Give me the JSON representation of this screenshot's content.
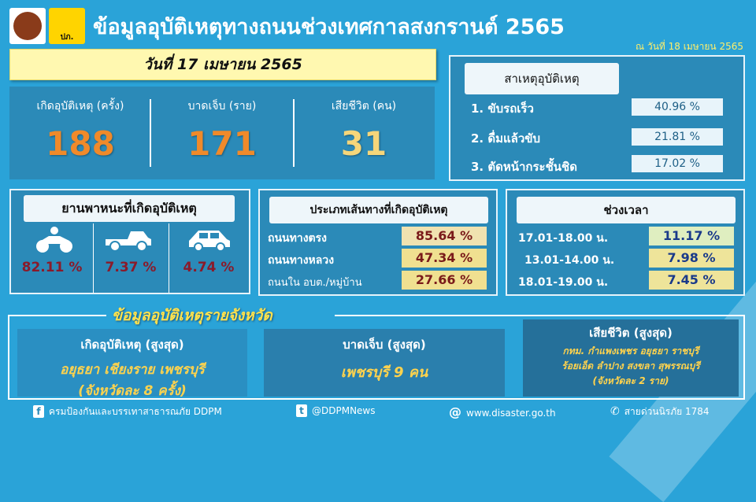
{
  "header": {
    "title": "ข้อมูลอุบัติเหตุทางถนนช่วงเทศกาลสงกรานต์ 2565",
    "as_of": "ณ วันที่ 18 เมษายน 2565",
    "logo_text": "ปภ."
  },
  "date_banner": "วันที่ 17 เมษายน 2565",
  "stats": [
    {
      "label": "เกิดอุบัติเหตุ (ครั้ง)",
      "value": "188"
    },
    {
      "label": "บาดเจ็บ (ราย)",
      "value": "171"
    },
    {
      "label": "เสียชีวิต (คน)",
      "value": "31"
    }
  ],
  "causes": {
    "title": "สาเหตุอุบัติเหตุ",
    "items": [
      {
        "label": "1. ขับรถเร็ว",
        "value": "40.96  %"
      },
      {
        "label": "2. ดื่มแล้วขับ",
        "value": "21.81  %"
      },
      {
        "label": "3. ตัดหน้ากระชั้นชิด",
        "value": "17.02  %"
      }
    ]
  },
  "vehicles": {
    "title": "ยานพาหนะที่เกิดอุบัติเหตุ",
    "items": [
      {
        "icon": "motorcycle-icon",
        "value": "82.11 %"
      },
      {
        "icon": "pickup-truck-icon",
        "value": "7.37 %"
      },
      {
        "icon": "car-icon",
        "value": "4.74 %"
      }
    ]
  },
  "roads": {
    "title": "ประเภทเส้นทางที่เกิดอุบัติเหตุ",
    "items": [
      {
        "label": "ถนนทางตรง",
        "value": "85.64  %"
      },
      {
        "label": "ถนนทางหลวง",
        "value": "47.34  %"
      },
      {
        "label": "ถนนใน อบต./หมู่บ้าน",
        "value": "27.66  %"
      }
    ]
  },
  "times": {
    "title": "ช่วงเวลา",
    "items": [
      {
        "label": "17.01-18.00 น.",
        "value": "11.17  %"
      },
      {
        "label": "13.01-14.00 น.",
        "value": "7.98  %"
      },
      {
        "label": "18.01-19.00 น.",
        "value": "7.45  %"
      }
    ]
  },
  "province": {
    "title": "ข้อมูลอุบัติเหตุรายจังหวัด",
    "accidents": {
      "title": "เกิดอุบัติเหตุ (สูงสุด)",
      "line1": "อยุธยา เชียงราย เพชรบุรี",
      "line2": "(จังหวัดละ 8 ครั้ง)"
    },
    "injured": {
      "title": "บาดเจ็บ (สูงสุด)",
      "line1": "เพชรบุรี 9 คน"
    },
    "deaths": {
      "title": "เสียชีวิต (สูงสุด)",
      "line1": "กทม. กำแพงเพชร อยุธยา ราชบุรี",
      "line2": "ร้อยเอ็ด ลำปาง สงขลา สุพรรณบุรี",
      "line3": "(จังหวัดละ 2 ราย)"
    }
  },
  "footer": {
    "facebook": "ครมป้องกันและบรรเทาสาธารณภัย DDPM",
    "twitter": "@DDPMNews",
    "website": "www.disaster.go.th",
    "hotline": "สายด่วนนิรภัย 1784"
  },
  "colors": {
    "background": "#2aa3d8",
    "accent": "#f08a2a",
    "highlight": "#ffd34d"
  }
}
